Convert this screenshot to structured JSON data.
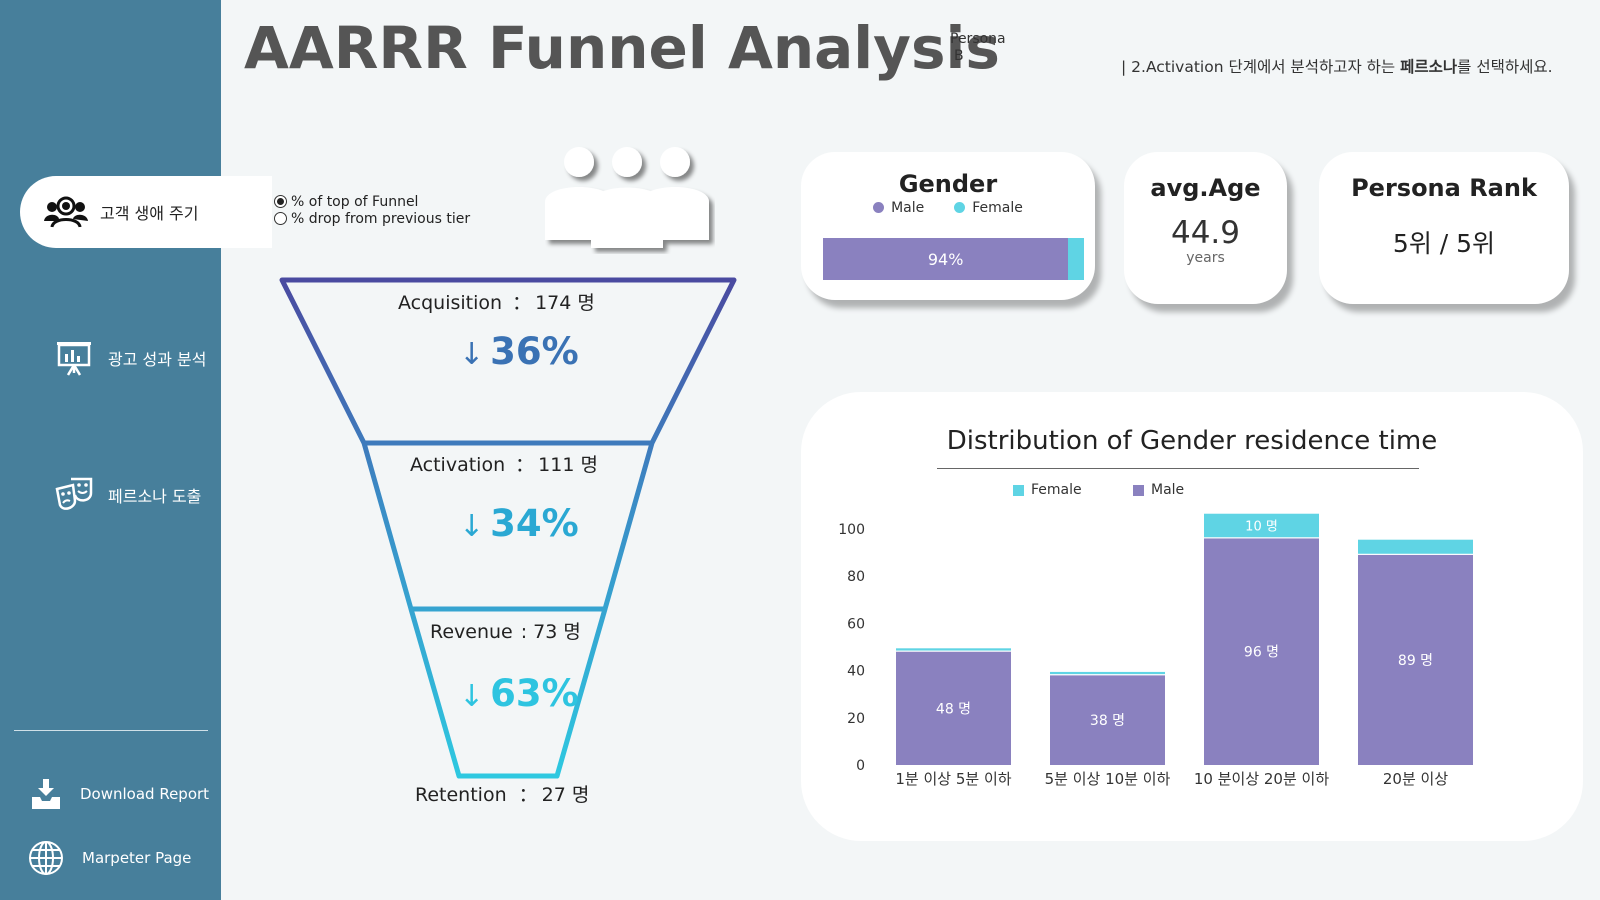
{
  "header": {
    "title": "AARRR Funnel Analysis",
    "persona_label": "Persona",
    "persona_value": "B",
    "instruction_prefix": "| 2.Activation 단계에서 분석하고자 하는 ",
    "instruction_bold": "페르소나",
    "instruction_suffix": "를 선택하세요."
  },
  "sidebar": {
    "items": [
      {
        "label": "고객 생애 주기",
        "icon": "customers-icon"
      },
      {
        "label": "광고 성과 분석",
        "icon": "presentation-chart-icon"
      },
      {
        "label": "페르소나 도출",
        "icon": "theater-masks-icon"
      },
      {
        "label": "Download Report",
        "icon": "download-icon"
      },
      {
        "label": "Marpeter Page",
        "icon": "globe-icon"
      }
    ]
  },
  "funnel_options": {
    "selected": "% of top of Funnel",
    "options": [
      "% of top of Funnel",
      "% drop from previous tier"
    ]
  },
  "funnel": {
    "stages": [
      {
        "label": "Acquisition",
        "sep": "：",
        "count": "174 명",
        "pct": "36%"
      },
      {
        "label": "Activation",
        "sep": "：",
        "count": "111 명",
        "pct": "34%"
      },
      {
        "label": "Revenue",
        "sep": ":",
        "count": "73 명",
        "pct": "63%"
      },
      {
        "label": "Retention",
        "sep": "：",
        "count": "27 명"
      }
    ],
    "arrow": "↓"
  },
  "gender_card": {
    "title": "Gender",
    "legend_male": "Male",
    "legend_female": "Female",
    "male_share": 0.94,
    "bar_label": "94%",
    "male_color": "#8a81bf",
    "female_color": "#5fd4e4"
  },
  "age_card": {
    "title": "avg.Age",
    "value": "44.9",
    "unit": "years"
  },
  "rank_card": {
    "title": "Persona Rank",
    "value": "5위 / 5위"
  },
  "chart_data": {
    "type": "bar",
    "stacked": true,
    "title": "Distribution of Gender residence time",
    "categories": [
      "1분 이상 5분 이하",
      "5분 이상 10분 이하",
      "10 분이상 20분 이하",
      "20분 이상"
    ],
    "series": [
      {
        "name": "Male",
        "values": [
          48,
          38,
          96,
          89
        ],
        "labels": [
          "48 명",
          "38 명",
          "96 명",
          "89 명"
        ],
        "color": "#8a81bf"
      },
      {
        "name": "Female",
        "values": [
          1,
          1,
          10,
          6
        ],
        "labels": [
          "",
          "",
          "10 명",
          ""
        ],
        "color": "#5fd4e4"
      }
    ],
    "legend": [
      "Female",
      "Male"
    ],
    "yticks": [
      0,
      20,
      40,
      60,
      80,
      100
    ],
    "ylim": [
      0,
      108
    ]
  }
}
